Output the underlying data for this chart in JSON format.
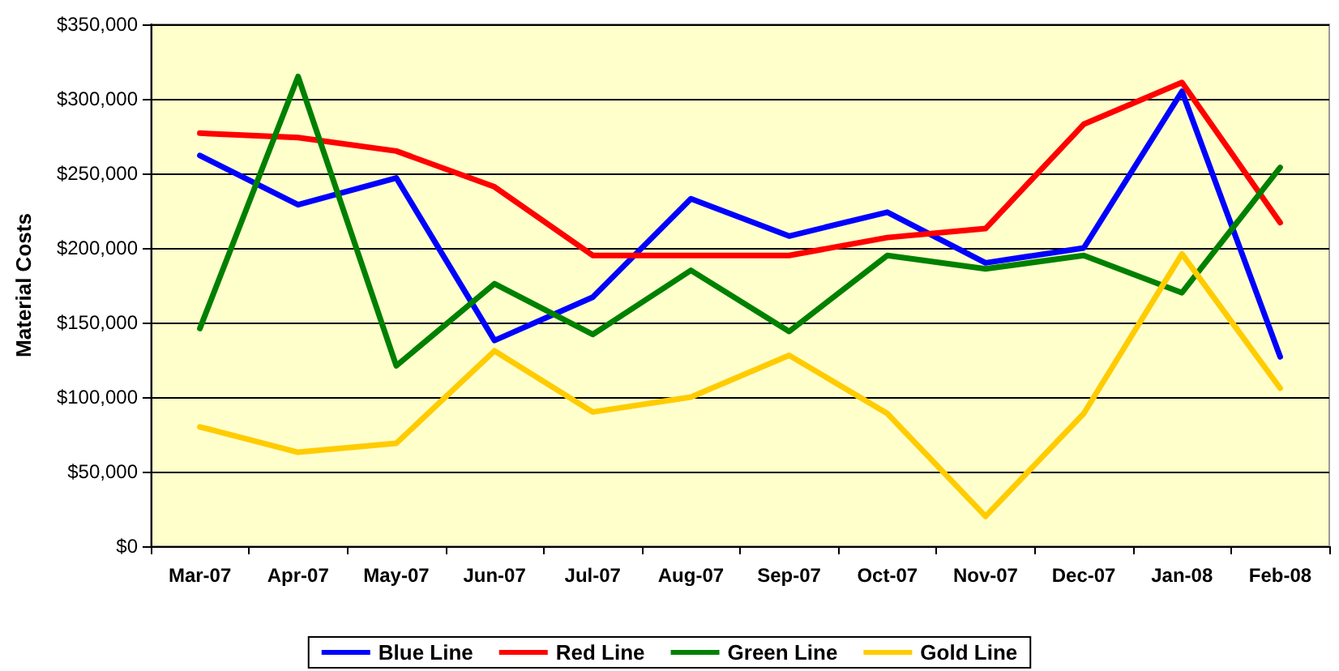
{
  "chart_data": {
    "type": "line",
    "ylabel": "Material Costs",
    "categories": [
      "Mar-07",
      "Apr-07",
      "May-07",
      "Jun-07",
      "Jul-07",
      "Aug-07",
      "Sep-07",
      "Oct-07",
      "Nov-07",
      "Dec-07",
      "Jan-08",
      "Feb-08"
    ],
    "series": [
      {
        "name": "Blue Line",
        "color": "#0000ff",
        "values": [
          262000,
          229000,
          247000,
          138000,
          167000,
          233000,
          208000,
          224000,
          190000,
          200000,
          305000,
          127000
        ]
      },
      {
        "name": "Red Line",
        "color": "#ff0000",
        "values": [
          277000,
          274000,
          265000,
          241000,
          195000,
          195000,
          195000,
          207000,
          213000,
          283000,
          311000,
          217000
        ]
      },
      {
        "name": "Green Line",
        "color": "#008000",
        "values": [
          146000,
          315000,
          121000,
          176000,
          142000,
          185000,
          144000,
          195000,
          186000,
          195000,
          170000,
          254000
        ]
      },
      {
        "name": "Gold Line",
        "color": "#ffcc00",
        "values": [
          80000,
          63000,
          69000,
          131000,
          90000,
          100000,
          128000,
          89000,
          20000,
          89000,
          196000,
          106000
        ]
      }
    ],
    "ylim": [
      0,
      350000
    ],
    "yticks": [
      {
        "value": 0,
        "label": "$0"
      },
      {
        "value": 50000,
        "label": "$50,000"
      },
      {
        "value": 100000,
        "label": "$100,000"
      },
      {
        "value": 150000,
        "label": "$150,000"
      },
      {
        "value": 200000,
        "label": "$200,000"
      },
      {
        "value": 250000,
        "label": "$250,000"
      },
      {
        "value": 300000,
        "label": "$300,000"
      },
      {
        "value": 350000,
        "label": "$350,000"
      }
    ],
    "grid": "y",
    "legend": "bottom",
    "marker": "none",
    "line_style": "solid"
  }
}
